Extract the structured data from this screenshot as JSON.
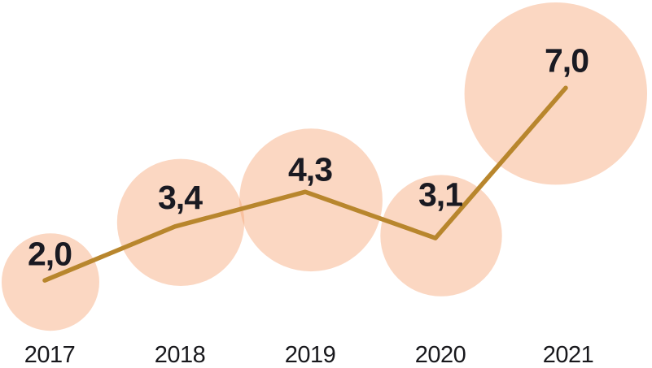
{
  "chart_data": {
    "type": "bubble-line",
    "title": "",
    "xlabel": "",
    "ylabel": "",
    "categories": [
      "2017",
      "2018",
      "2019",
      "2020",
      "2021"
    ],
    "values": [
      2.0,
      3.4,
      4.3,
      3.1,
      7.0
    ],
    "value_labels": [
      "2,0",
      "3,4",
      "4,3",
      "3,1",
      "7,0"
    ],
    "decimal_separator": ",",
    "legend": "none",
    "grid": false,
    "axes_visible": false,
    "bubble_sizing": "area-proportional-to-value",
    "ylim": [
      0,
      8
    ],
    "colors": {
      "background": "#FFFFFF",
      "bubble_fill": "#F6A678",
      "bubble_opacity": 0.45,
      "line": "#B8862D",
      "value_text": "#1A1A22",
      "year_text": "#18181C"
    }
  }
}
